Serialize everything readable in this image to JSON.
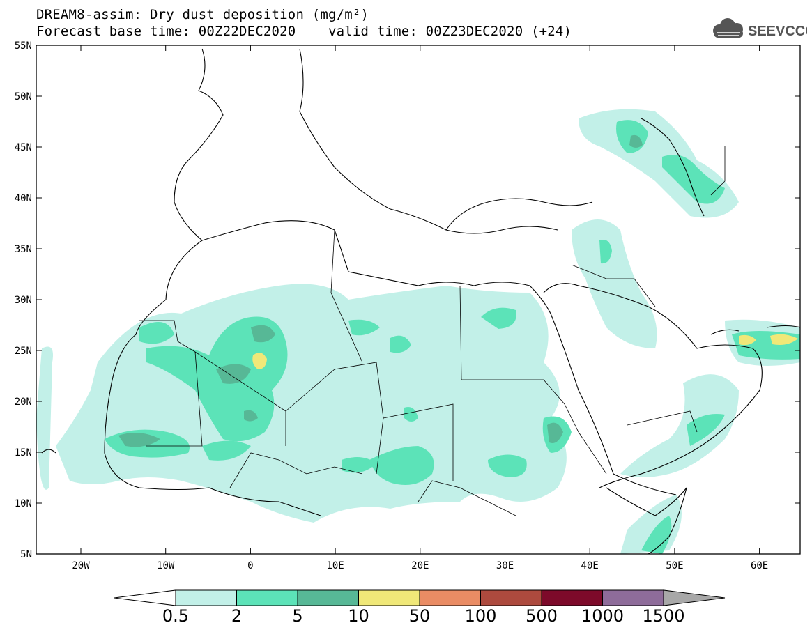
{
  "title": {
    "line1": "DREAM8-assim: Dry dust deposition (mg/m²)",
    "line2": "Forecast base time: 00Z22DEC2020    valid time: 00Z23DEC2020 (+24)"
  },
  "logo": {
    "text": "SEEVCCC",
    "icon": "cloud-icon",
    "color": "#555555"
  },
  "map": {
    "lat_ticks": [
      "55N",
      "50N",
      "45N",
      "40N",
      "35N",
      "30N",
      "25N",
      "20N",
      "15N",
      "10N",
      "5N"
    ],
    "lon_ticks": [
      "20W",
      "10W",
      "0",
      "10E",
      "20E",
      "30E",
      "40E",
      "50E",
      "60E"
    ]
  },
  "colorbar": {
    "labels": [
      "0.5",
      "2",
      "5",
      "10",
      "50",
      "100",
      "500",
      "1000",
      "1500"
    ],
    "colors": [
      "#c2f0e8",
      "#5ce3b8",
      "#57b896",
      "#f0e878",
      "#ea8c64",
      "#ad4a3e",
      "#7d0a2a",
      "#8e6c9a"
    ],
    "under_color": "#ffffff",
    "over_color": "#a8a8a8"
  }
}
